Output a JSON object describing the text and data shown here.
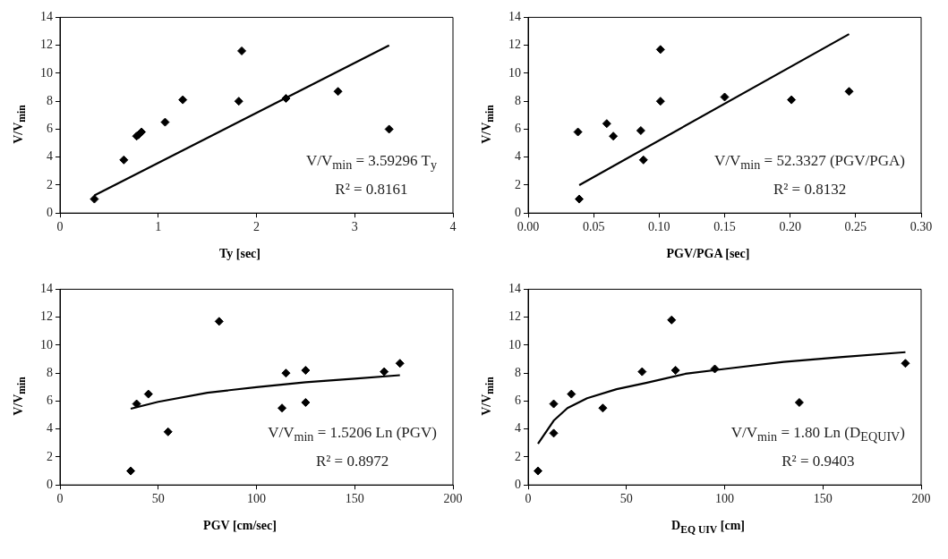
{
  "chart_data": [
    {
      "type": "scatter",
      "xlabel": "Ty [sec]",
      "ylabel": "V/V$_{min}$",
      "xlim": [
        0,
        4
      ],
      "xticks": [
        0,
        1,
        2,
        3,
        4
      ],
      "ylim": [
        0,
        14
      ],
      "yticks": [
        0,
        2,
        4,
        6,
        8,
        10,
        12,
        14
      ],
      "grid": false,
      "annotations": [
        "V/V$_{min}$ = 3.59296 T$_{y}$",
        "R² = 0.8161"
      ],
      "series": [
        {
          "type": "scatter",
          "marker": "diamond",
          "color": "#000000",
          "x": [
            0.35,
            0.65,
            0.78,
            0.8,
            0.83,
            1.07,
            1.25,
            1.82,
            1.85,
            2.3,
            2.83,
            3.35
          ],
          "values": [
            1.0,
            3.8,
            5.5,
            5.6,
            5.8,
            6.5,
            8.1,
            8.0,
            11.6,
            8.2,
            8.7,
            6.0
          ]
        },
        {
          "type": "line",
          "color": "#000000",
          "line_style": "solid",
          "x": [
            0.35,
            3.35
          ],
          "values": [
            1.26,
            12.0
          ]
        }
      ]
    },
    {
      "type": "scatter",
      "xlabel": "PGV/PGA [sec]",
      "ylabel": "V/V$_{min}$",
      "xlim": [
        0,
        0.3
      ],
      "xticks": [
        {
          "value": 0,
          "label": "0.00"
        },
        {
          "value": 0.05,
          "label": "0.05"
        },
        {
          "value": 0.1,
          "label": "0.10"
        },
        {
          "value": 0.15,
          "label": "0.15"
        },
        {
          "value": 0.2,
          "label": "0.20"
        },
        {
          "value": 0.25,
          "label": "0.25"
        },
        {
          "value": 0.3,
          "label": "0.30"
        }
      ],
      "ylim": [
        0,
        14
      ],
      "yticks": [
        0,
        2,
        4,
        6,
        8,
        10,
        12,
        14
      ],
      "grid": false,
      "annotations": [
        "V/V$_{min}$ = 52.3327 (PGV/PGA)",
        "R² = 0.8132"
      ],
      "series": [
        {
          "type": "scatter",
          "marker": "diamond",
          "color": "#000000",
          "x": [
            0.038,
            0.039,
            0.06,
            0.065,
            0.086,
            0.088,
            0.101,
            0.101,
            0.15,
            0.201,
            0.245
          ],
          "values": [
            5.8,
            1.0,
            6.4,
            5.5,
            5.9,
            3.8,
            11.7,
            8.0,
            8.3,
            8.1,
            8.7
          ]
        },
        {
          "type": "line",
          "color": "#000000",
          "line_style": "solid",
          "x": [
            0.039,
            0.245
          ],
          "values": [
            2.0,
            12.8
          ]
        }
      ]
    },
    {
      "type": "scatter",
      "xlabel": "PGV [cm/sec]",
      "ylabel": "V/V$_{min}$",
      "xlim": [
        0,
        200
      ],
      "xticks": [
        0,
        50,
        100,
        150,
        200
      ],
      "ylim": [
        0,
        14
      ],
      "yticks": [
        0,
        2,
        4,
        6,
        8,
        10,
        12,
        14
      ],
      "grid": false,
      "annotations": [
        "V/V$_{min}$ = 1.5206 Ln (PGV)",
        "R² = 0.8972"
      ],
      "series": [
        {
          "type": "scatter",
          "marker": "diamond",
          "color": "#000000",
          "x": [
            36,
            39,
            45,
            55,
            81,
            113,
            115,
            125,
            125,
            165,
            173
          ],
          "values": [
            1.0,
            5.8,
            6.5,
            3.8,
            11.7,
            5.5,
            8.0,
            8.2,
            5.9,
            8.1,
            8.7
          ]
        },
        {
          "type": "line",
          "color": "#000000",
          "line_style": "solid",
          "x": [
            36,
            50,
            75,
            100,
            125,
            150,
            173
          ],
          "values": [
            5.45,
            5.95,
            6.6,
            7.0,
            7.35,
            7.6,
            7.85
          ]
        }
      ]
    },
    {
      "type": "scatter",
      "xlabel": "D$_{EQ UIV}$ [cm]",
      "ylabel": "V/V$_{min}$",
      "xlim": [
        0,
        200
      ],
      "xticks": [
        0,
        50,
        100,
        150,
        200
      ],
      "ylim": [
        0,
        14
      ],
      "yticks": [
        0,
        2,
        4,
        6,
        8,
        10,
        12,
        14
      ],
      "grid": false,
      "annotations": [
        "V/V$_{min}$ = 1.80 Ln (D$_{EQUIV}$)",
        "R² = 0.9403"
      ],
      "series": [
        {
          "type": "scatter",
          "marker": "diamond",
          "color": "#000000",
          "x": [
            5,
            13,
            13,
            22,
            38,
            58,
            73,
            75,
            95,
            138,
            192
          ],
          "values": [
            1.0,
            5.8,
            3.7,
            6.5,
            5.5,
            8.1,
            11.8,
            8.2,
            8.3,
            5.9,
            8.7
          ]
        },
        {
          "type": "line",
          "color": "#000000",
          "line_style": "solid",
          "x": [
            5,
            13,
            20,
            30,
            45,
            60,
            80,
            100,
            130,
            160,
            192
          ],
          "values": [
            2.95,
            4.6,
            5.5,
            6.2,
            6.85,
            7.3,
            7.95,
            8.3,
            8.8,
            9.15,
            9.5
          ]
        }
      ]
    }
  ]
}
